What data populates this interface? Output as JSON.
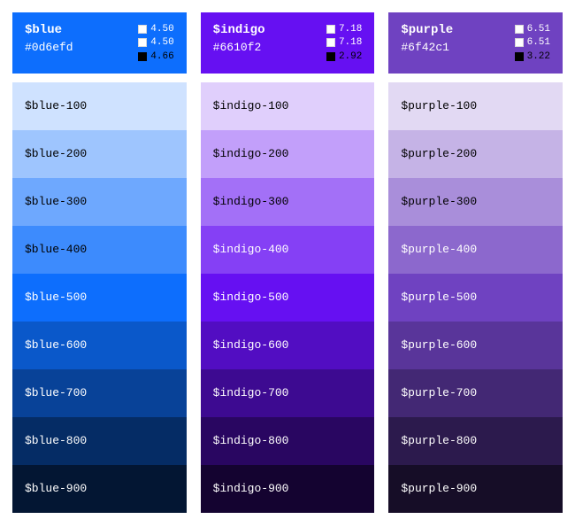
{
  "palettes": [
    {
      "name": "$blue",
      "hex": "#0d6efd",
      "header_bg": "#0d6efd",
      "header_fg": "#ffffff",
      "ratios": [
        {
          "swatch": "#ffffff",
          "value": "4.50",
          "text_color": "#ffffff"
        },
        {
          "swatch": "#ffffff",
          "value": "4.50",
          "text_color": "#ffffff"
        },
        {
          "swatch": "#000000",
          "value": "4.66",
          "text_color": "#000000"
        }
      ],
      "shades": [
        {
          "label": "$blue-100",
          "bg": "#cfe2ff",
          "fg": "#000000"
        },
        {
          "label": "$blue-200",
          "bg": "#9ec5fe",
          "fg": "#000000"
        },
        {
          "label": "$blue-300",
          "bg": "#6ea8fe",
          "fg": "#000000"
        },
        {
          "label": "$blue-400",
          "bg": "#3d8bfd",
          "fg": "#000000"
        },
        {
          "label": "$blue-500",
          "bg": "#0d6efd",
          "fg": "#ffffff"
        },
        {
          "label": "$blue-600",
          "bg": "#0a58ca",
          "fg": "#ffffff"
        },
        {
          "label": "$blue-700",
          "bg": "#084298",
          "fg": "#ffffff"
        },
        {
          "label": "$blue-800",
          "bg": "#052c65",
          "fg": "#ffffff"
        },
        {
          "label": "$blue-900",
          "bg": "#031633",
          "fg": "#ffffff"
        }
      ]
    },
    {
      "name": "$indigo",
      "hex": "#6610f2",
      "header_bg": "#6610f2",
      "header_fg": "#ffffff",
      "ratios": [
        {
          "swatch": "#ffffff",
          "value": "7.18",
          "text_color": "#ffffff"
        },
        {
          "swatch": "#ffffff",
          "value": "7.18",
          "text_color": "#ffffff"
        },
        {
          "swatch": "#000000",
          "value": "2.92",
          "text_color": "#000000"
        }
      ],
      "shades": [
        {
          "label": "$indigo-100",
          "bg": "#e0cffc",
          "fg": "#000000"
        },
        {
          "label": "$indigo-200",
          "bg": "#c29ffa",
          "fg": "#000000"
        },
        {
          "label": "$indigo-300",
          "bg": "#a370f7",
          "fg": "#000000"
        },
        {
          "label": "$indigo-400",
          "bg": "#8540f5",
          "fg": "#ffffff"
        },
        {
          "label": "$indigo-500",
          "bg": "#6610f2",
          "fg": "#ffffff"
        },
        {
          "label": "$indigo-600",
          "bg": "#520dc2",
          "fg": "#ffffff"
        },
        {
          "label": "$indigo-700",
          "bg": "#3d0a91",
          "fg": "#ffffff"
        },
        {
          "label": "$indigo-800",
          "bg": "#290661",
          "fg": "#ffffff"
        },
        {
          "label": "$indigo-900",
          "bg": "#140330",
          "fg": "#ffffff"
        }
      ]
    },
    {
      "name": "$purple",
      "hex": "#6f42c1",
      "header_bg": "#6f42c1",
      "header_fg": "#ffffff",
      "ratios": [
        {
          "swatch": "#ffffff",
          "value": "6.51",
          "text_color": "#ffffff"
        },
        {
          "swatch": "#ffffff",
          "value": "6.51",
          "text_color": "#ffffff"
        },
        {
          "swatch": "#000000",
          "value": "3.22",
          "text_color": "#000000"
        }
      ],
      "shades": [
        {
          "label": "$purple-100",
          "bg": "#e2d9f3",
          "fg": "#000000"
        },
        {
          "label": "$purple-200",
          "bg": "#c5b3e6",
          "fg": "#000000"
        },
        {
          "label": "$purple-300",
          "bg": "#a98eda",
          "fg": "#000000"
        },
        {
          "label": "$purple-400",
          "bg": "#8c68cd",
          "fg": "#ffffff"
        },
        {
          "label": "$purple-500",
          "bg": "#6f42c1",
          "fg": "#ffffff"
        },
        {
          "label": "$purple-600",
          "bg": "#59359a",
          "fg": "#ffffff"
        },
        {
          "label": "$purple-700",
          "bg": "#432874",
          "fg": "#ffffff"
        },
        {
          "label": "$purple-800",
          "bg": "#2c1a4d",
          "fg": "#ffffff"
        },
        {
          "label": "$purple-900",
          "bg": "#160d27",
          "fg": "#ffffff"
        }
      ]
    }
  ]
}
